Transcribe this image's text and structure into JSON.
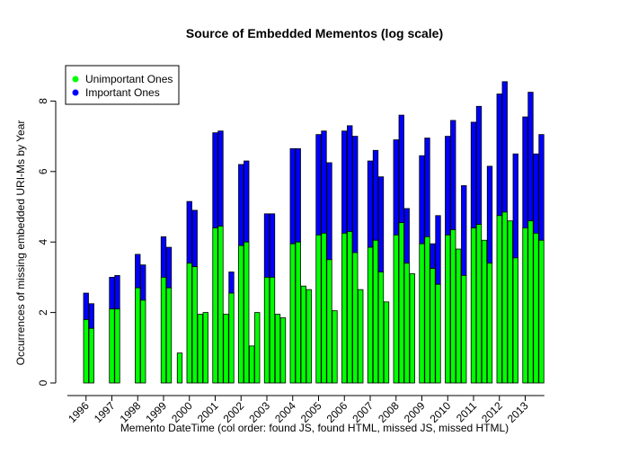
{
  "chart_data": {
    "type": "bar",
    "title": "Source of Embedded Mementos (log scale)",
    "xlabel": "Memento DateTime (col order: found JS, found HTML, missed JS, missed HTML)",
    "ylabel": "Occurrences of missing embedded URI-Ms by Year",
    "ylim": [
      0,
      9
    ],
    "yticks": [
      0,
      2,
      4,
      6,
      8
    ],
    "grid": false,
    "legend": "top-left",
    "stacked": true,
    "column_order": [
      "found JS",
      "found HTML",
      "missed JS",
      "missed HTML"
    ],
    "categories": [
      "1996",
      "1997",
      "1998",
      "1999",
      "2000",
      "2001",
      "2002",
      "2003",
      "2004",
      "2005",
      "2006",
      "2007",
      "2008",
      "2009",
      "2010",
      "2011",
      "2012",
      "2013"
    ],
    "series": [
      {
        "name": "Unimportant Ones",
        "color": "#00ff00",
        "values": [
          [
            1.8,
            1.55,
            null,
            null
          ],
          [
            2.1,
            2.1,
            null,
            null
          ],
          [
            2.7,
            2.35,
            null,
            null
          ],
          [
            3.0,
            2.7,
            null,
            0.85
          ],
          [
            3.4,
            3.3,
            1.95,
            2.0
          ],
          [
            4.4,
            4.45,
            1.95,
            2.55
          ],
          [
            3.9,
            4.0,
            1.05,
            2.0
          ],
          [
            3.0,
            3.0,
            1.95,
            1.85
          ],
          [
            3.95,
            4.0,
            2.75,
            2.65
          ],
          [
            4.2,
            4.25,
            3.5,
            2.05
          ],
          [
            4.25,
            4.3,
            3.7,
            2.65
          ],
          [
            3.85,
            4.05,
            3.15,
            2.3
          ],
          [
            4.2,
            4.55,
            3.4,
            3.1
          ],
          [
            3.95,
            4.15,
            3.25,
            2.8
          ],
          [
            4.2,
            4.35,
            3.8,
            3.05
          ],
          [
            4.4,
            4.5,
            4.05,
            3.4
          ],
          [
            4.75,
            4.85,
            4.6,
            3.55
          ],
          [
            4.4,
            4.6,
            4.25,
            4.05
          ]
        ]
      },
      {
        "name": "Important Ones",
        "color": "#0000ff",
        "values": [
          [
            2.55,
            2.25,
            null,
            null
          ],
          [
            3.0,
            3.05,
            null,
            null
          ],
          [
            3.65,
            3.35,
            null,
            null
          ],
          [
            4.15,
            3.85,
            null,
            null
          ],
          [
            5.15,
            4.9,
            null,
            null
          ],
          [
            7.1,
            7.15,
            null,
            3.15
          ],
          [
            6.2,
            6.3,
            null,
            null
          ],
          [
            4.8,
            4.8,
            null,
            null
          ],
          [
            6.65,
            6.65,
            null,
            null
          ],
          [
            7.05,
            7.15,
            6.25,
            null
          ],
          [
            7.15,
            7.3,
            7.0,
            null
          ],
          [
            6.3,
            6.6,
            5.85,
            null
          ],
          [
            6.9,
            7.6,
            4.95,
            null
          ],
          [
            6.45,
            6.95,
            3.95,
            4.75
          ],
          [
            7.0,
            7.45,
            null,
            5.6
          ],
          [
            7.4,
            7.85,
            null,
            6.15
          ],
          [
            8.2,
            8.55,
            null,
            6.5
          ],
          [
            7.55,
            8.25,
            6.5,
            7.05
          ]
        ]
      }
    ]
  }
}
